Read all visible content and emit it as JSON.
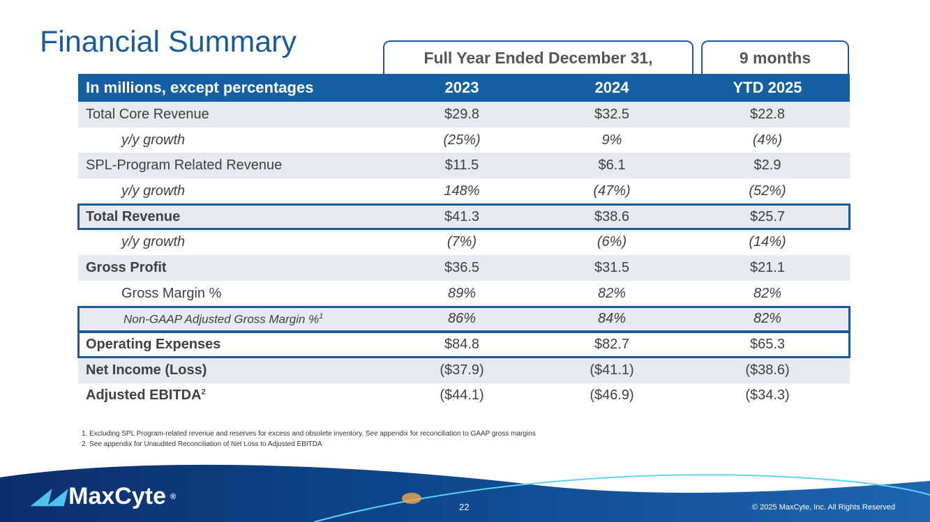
{
  "title": "Financial Summary",
  "tabs": {
    "full_year": "Full Year Ended December 31,",
    "nine_months": "9 months"
  },
  "header": {
    "label": "In millions, except percentages",
    "c1": "2023",
    "c2": "2024",
    "c3": "YTD 2025"
  },
  "rows": [
    {
      "label": "Total Core Revenue",
      "v": [
        "$29.8",
        "$32.5",
        "$22.8"
      ]
    },
    {
      "label": "y/y growth",
      "v": [
        "(25%)",
        "9%",
        "(4%)"
      ]
    },
    {
      "label": "SPL-Program Related Revenue",
      "v": [
        "$11.5",
        "$6.1",
        "$2.9"
      ]
    },
    {
      "label": "y/y growth",
      "v": [
        "148%",
        "(47%)",
        "(52%)"
      ]
    },
    {
      "label": "Total Revenue",
      "v": [
        "$41.3",
        "$38.6",
        "$25.7"
      ]
    },
    {
      "label": "y/y growth",
      "v": [
        "(7%)",
        "(6%)",
        "(14%)"
      ]
    },
    {
      "label": "Gross Profit",
      "v": [
        "$36.5",
        "$31.5",
        "$21.1"
      ]
    },
    {
      "label": "Gross Margin %",
      "v": [
        "89%",
        "82%",
        "82%"
      ]
    },
    {
      "label": "Non-GAAP Adjusted Gross Margin %",
      "sup": "1",
      "v": [
        "86%",
        "84%",
        "82%"
      ]
    },
    {
      "label": "Operating Expenses",
      "v": [
        "$84.8",
        "$82.7",
        "$65.3"
      ]
    },
    {
      "label": "Net Income (Loss)",
      "v": [
        "($37.9)",
        "($41.1)",
        "($38.6)"
      ]
    },
    {
      "label": "Adjusted EBITDA",
      "sup": "2",
      "v": [
        "($44.1)",
        "($46.9)",
        "($34.3)"
      ]
    }
  ],
  "footnotes": [
    "1.   Excluding SPL Program-related revenue and reserves for excess and obsolete inventory. See appendix for reconciliation to GAAP gross margins",
    "2.   See appendix for Unaudited Reconciliation of Net Loss to Adjusted EBITDA"
  ],
  "footer": {
    "logo": "MaxCyte",
    "registered": "®",
    "page": "22",
    "copyright": "© 2025 MaxCyte, Inc. All Rights Reserved"
  }
}
